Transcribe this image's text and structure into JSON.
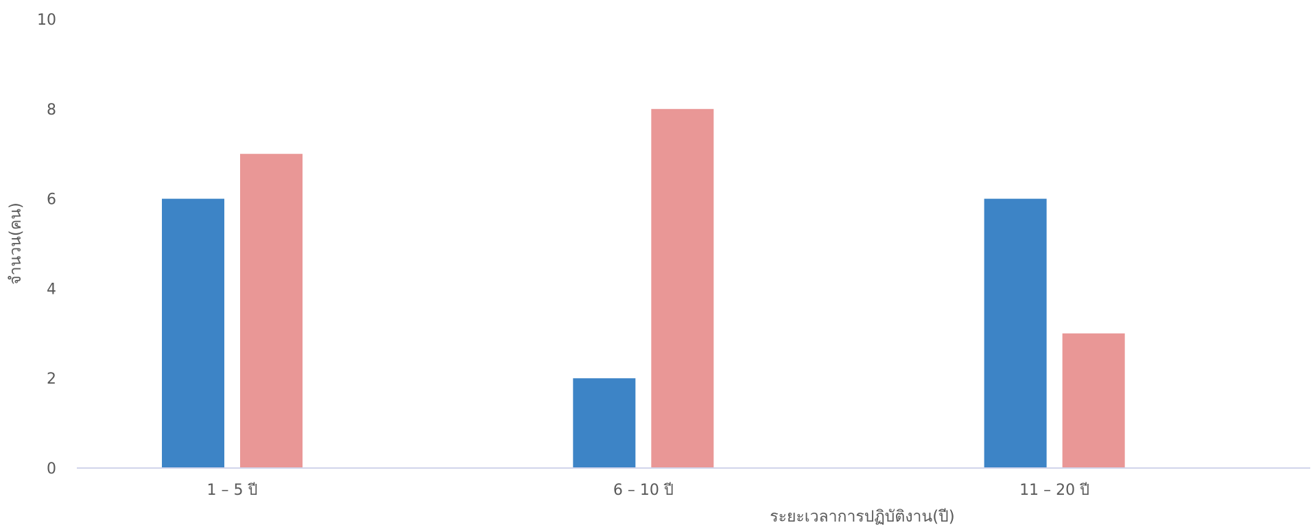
{
  "chart_data": {
    "type": "bar",
    "title": "",
    "xlabel": "ระยะเวลาการปฏิบัติงาน(ปี)",
    "ylabel": "จำนวน(คน)",
    "categories": [
      "1 – 5 ปี",
      "6 – 10 ปี",
      "11 – 20 ปี"
    ],
    "series": [
      {
        "values": [
          6,
          2,
          6
        ],
        "color": "#3D84C6"
      },
      {
        "values": [
          7,
          8,
          3
        ],
        "color": "#E99796"
      }
    ],
    "ylim": [
      0,
      10
    ],
    "yticks": [
      0,
      2,
      4,
      6,
      8,
      10
    ],
    "grid": false,
    "legend": "none",
    "baseline_color": "#D0D4EA"
  }
}
